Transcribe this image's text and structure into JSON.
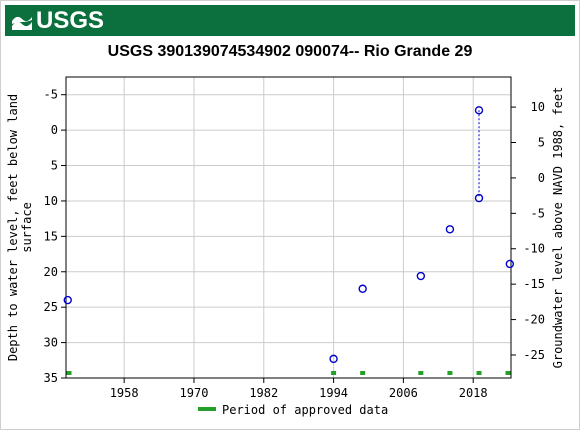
{
  "header": {
    "logo_text": "USGS",
    "logo_icon": "usgs-wave-icon",
    "brand_color": "#0b6f3e"
  },
  "chart_data": {
    "type": "scatter",
    "title": "USGS 390139074534902 090074-- Rio Grande 29",
    "xlabel": "",
    "ylabel_left": "Depth to water level, feet below land surface",
    "ylabel_right": "Groundwater level above NAVD 1988, feet",
    "x_ticks": [
      1958,
      1970,
      1982,
      1994,
      2006,
      2018
    ],
    "xlim": [
      1948,
      2024.5
    ],
    "y_left_ticks": [
      -5,
      0,
      5,
      10,
      15,
      20,
      25,
      30,
      35
    ],
    "y_left_lim": [
      -7.5,
      35
    ],
    "y_left_inverted": true,
    "y_right_ticks": [
      10,
      5,
      0,
      -5,
      -10,
      -15,
      -20,
      -25
    ],
    "right_offset": 6.75,
    "grid": true,
    "series": [
      {
        "name": "",
        "marker": "open-circle",
        "color": "#0000cc",
        "points": [
          {
            "x": 1948.3,
            "y": 24.0
          },
          {
            "x": 1994.0,
            "y": 32.3
          },
          {
            "x": 1999.0,
            "y": 22.4
          },
          {
            "x": 2009.0,
            "y": 20.6
          },
          {
            "x": 2014.0,
            "y": 14.0
          },
          {
            "x": 2019.0,
            "y": -2.8
          },
          {
            "x": 2019.0,
            "y": 9.6
          },
          {
            "x": 2024.3,
            "y": 18.9
          }
        ],
        "connected_pairs": [
          [
            5,
            6
          ]
        ]
      }
    ],
    "approved_periods": [
      1948.3,
      1994.0,
      1999.0,
      2009.0,
      2014.0,
      2019.0,
      2024.3
    ],
    "legend": {
      "label": "Period of approved data",
      "color": "#22a02a",
      "placement": "bottom-center"
    }
  }
}
